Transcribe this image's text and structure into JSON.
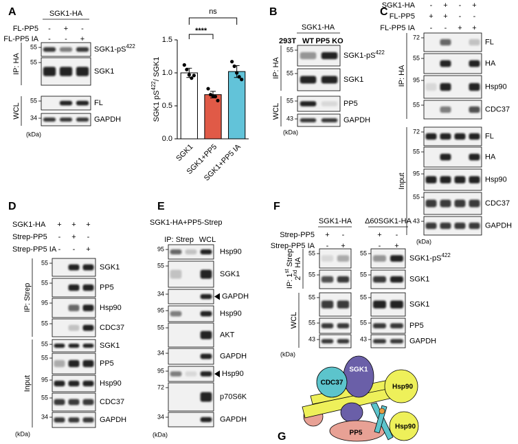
{
  "chart_data": {
    "type": "bar",
    "ylabel": [
      "SGK1 pS",
      "422",
      "/ SGK1"
    ],
    "categories": [
      "SGK1",
      "SGK1+PP5",
      "SGK1+PP5 IA"
    ],
    "values": [
      1.0,
      0.67,
      1.02
    ],
    "errors": [
      0.07,
      0.05,
      0.09
    ],
    "points": [
      [
        1.12,
        1.05,
        0.97,
        0.92,
        0.96
      ],
      [
        0.76,
        0.67,
        0.65,
        0.64,
        0.58
      ],
      [
        1.17,
        1.1,
        1.0,
        0.94,
        0.9
      ]
    ],
    "colors": [
      "#ffffff",
      "#e05a47",
      "#62c3d9"
    ],
    "ylim": [
      0,
      1.5
    ],
    "yticks": [
      {
        "value": 0,
        "label": "0.0"
      },
      {
        "value": 0.5,
        "label": "0.5"
      },
      {
        "value": 1,
        "label": "1.0"
      },
      {
        "value": 1.5,
        "label": "1.5"
      }
    ],
    "annotations": [
      "****",
      "ns"
    ]
  },
  "panels": {
    "A": {
      "label": "A",
      "headers": [
        "SGK1-HA"
      ],
      "conditions": [
        {
          "name": "FL-PP5",
          "signs": [
            "-",
            "+",
            "-"
          ]
        },
        {
          "name": "FL-PP5 IA",
          "signs": [
            "-",
            "-",
            "+"
          ]
        }
      ],
      "groups": [
        {
          "name": "IP: HA",
          "blots": [
            {
              "name": "SGK1-pS",
              "sup": "422",
              "markers": [
                55
              ]
            },
            {
              "name": "SGK1",
              "markers": [
                55
              ]
            }
          ]
        },
        {
          "name": "WCL",
          "blots": [
            {
              "name": "FL",
              "markers": [
                55
              ]
            },
            {
              "name": "GAPDH",
              "markers": [
                34
              ]
            }
          ]
        }
      ],
      "unit": "(kDa)"
    },
    "B": {
      "label": "B",
      "headers": [
        "SGK1-HA"
      ],
      "conditions": [
        {
          "name": "293T",
          "signs": [
            "WT",
            "PP5 KO"
          ]
        }
      ],
      "groups": [
        {
          "name": "IP: HA",
          "blots": [
            {
              "name": "SGK1-pS",
              "sup": "422",
              "markers": [
                55
              ]
            },
            {
              "name": "SGK1",
              "markers": [
                55
              ]
            }
          ]
        },
        {
          "name": "WCL",
          "blots": [
            {
              "name": "PP5",
              "markers": [
                55
              ]
            },
            {
              "name": "GAPDH",
              "markers": [
                43
              ]
            }
          ]
        }
      ],
      "unit": "(kDa)"
    },
    "C": {
      "label": "C",
      "conditions": [
        {
          "name": "SGK1-HA",
          "signs": [
            "-",
            "+",
            "-",
            "+"
          ]
        },
        {
          "name": "FL-PP5",
          "signs": [
            "+",
            "+",
            "-",
            "-"
          ]
        },
        {
          "name": "FL-PP5 IA",
          "signs": [
            "-",
            "-",
            "+",
            "+"
          ]
        }
      ],
      "groups": [
        {
          "name": "IP: HA",
          "blots": [
            {
              "name": "FL",
              "markers": [
                72
              ]
            },
            {
              "name": "HA",
              "markers": [
                55
              ]
            },
            {
              "name": "Hsp90",
              "markers": [
                95
              ]
            },
            {
              "name": "CDC37",
              "markers": [
                55
              ]
            }
          ]
        },
        {
          "name": "Input",
          "blots": [
            {
              "name": "FL",
              "markers": [
                72
              ]
            },
            {
              "name": "HA",
              "markers": [
                55
              ]
            },
            {
              "name": "Hsp90",
              "markers": [
                95
              ]
            },
            {
              "name": "CDC37",
              "markers": [
                55
              ]
            },
            {
              "name": "GAPDH",
              "markers": [
                43
              ]
            }
          ]
        }
      ],
      "unit": "(kDa)"
    },
    "D": {
      "label": "D",
      "conditions": [
        {
          "name": "SGK1-HA",
          "signs": [
            "+",
            "+",
            "+"
          ]
        },
        {
          "name": "Strep-PP5",
          "signs": [
            "-",
            "+",
            "-"
          ]
        },
        {
          "name": "Strep-PP5 IA",
          "signs": [
            "-",
            "-",
            "+"
          ]
        }
      ],
      "groups": [
        {
          "name": "IP: Strep",
          "blots": [
            {
              "name": "SGK1",
              "markers": [
                55
              ]
            },
            {
              "name": "PP5",
              "markers": [
                55
              ]
            },
            {
              "name": "Hsp90",
              "markers": [
                95
              ]
            },
            {
              "name": "CDC37",
              "markers": [
                55
              ]
            }
          ]
        },
        {
          "name": "Input",
          "blots": [
            {
              "name": "SGK1",
              "markers": [
                55
              ]
            },
            {
              "name": "PP5",
              "markers": [
                55
              ]
            },
            {
              "name": "Hsp90",
              "markers": [
                95
              ]
            },
            {
              "name": "CDC37",
              "markers": [
                55
              ]
            },
            {
              "name": "GAPDH",
              "markers": [
                34
              ]
            }
          ]
        }
      ],
      "unit": "(kDa)"
    },
    "E": {
      "label": "E",
      "title": "SGK1-HA+PP5-Strep",
      "lane_headers": [
        "IP: Strep",
        "WCL"
      ],
      "blots": [
        {
          "name": "Hsp90",
          "markers": [
            95
          ]
        },
        {
          "name": "SGK1",
          "markers": [
            55
          ]
        },
        {
          "name": "GAPDH",
          "markers": [
            34
          ],
          "arrow": true
        },
        {
          "name": "Hsp90",
          "markers": [
            95
          ]
        },
        {
          "name": "AKT",
          "markers": [
            55
          ]
        },
        {
          "name": "GAPDH",
          "markers": [
            34
          ]
        },
        {
          "name": "Hsp90",
          "markers": [
            95
          ],
          "arrow": true
        },
        {
          "name": "p70S6K",
          "markers": [
            72
          ]
        },
        {
          "name": "GAPDH",
          "markers": [
            34
          ]
        }
      ],
      "unit": "(kDa)"
    },
    "F": {
      "label": "F",
      "headers": [
        "SGK1-HA",
        "Δ60SGK1-HA"
      ],
      "conditions": [
        {
          "name": "Strep-PP5",
          "signs": [
            "+",
            "-",
            "+",
            "-"
          ]
        },
        {
          "name": "Strep-PP5 IA",
          "signs": [
            "-",
            "+",
            "-",
            "+"
          ]
        }
      ],
      "groups": [
        {
          "name": [
            [
              "IP: 1",
              "st",
              " Strep"
            ],
            [
              "2",
              "nd",
              " HA"
            ]
          ],
          "blots": [
            {
              "name": "SGK1-pS",
              "sup": "422",
              "markers": [
                55,
                55
              ]
            },
            {
              "name": "SGK1",
              "markers": [
                55,
                55
              ]
            }
          ]
        },
        {
          "name": "WCL",
          "blots": [
            {
              "name": "SGK1",
              "markers": [
                55,
                55
              ]
            },
            {
              "name": "PP5",
              "markers": [
                55,
                55
              ]
            },
            {
              "name": "GAPDH",
              "markers": [
                43,
                43
              ]
            }
          ]
        }
      ],
      "unit": "(kDa)"
    },
    "G": {
      "label": "G",
      "labels": [
        "CDC37",
        "SGK1",
        "Hsp90",
        "Hsp90",
        "PP5"
      ]
    }
  }
}
